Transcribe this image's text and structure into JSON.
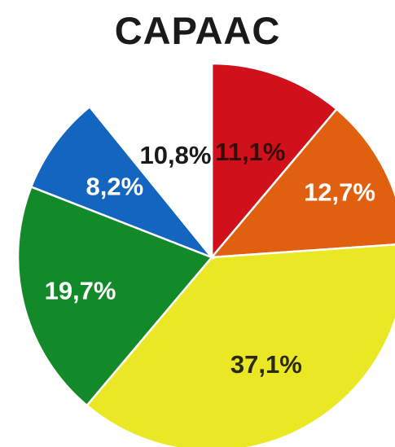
{
  "chart_data": {
    "type": "pie",
    "title": "CAPAAC",
    "slices": [
      {
        "label": "11,1%",
        "value": 11.1,
        "color": "#d0101a",
        "text_color": "#3a0a0a"
      },
      {
        "label": "12,7%",
        "value": 12.7,
        "color": "#e06010",
        "text_color": "#ffffff"
      },
      {
        "label": "37,1%",
        "value": 37.1,
        "color": "#eae824",
        "text_color": "#2a2a10"
      },
      {
        "label": "19,7%",
        "value": 19.7,
        "color": "#138a2a",
        "text_color": "#ffffff"
      },
      {
        "label": "8,2%",
        "value": 8.2,
        "color": "#1465c0",
        "text_color": "#ffffff"
      },
      {
        "label": "10,8%",
        "value": 10.8,
        "color": "#ffffff",
        "text_color": "#1a1a1a"
      }
    ]
  }
}
